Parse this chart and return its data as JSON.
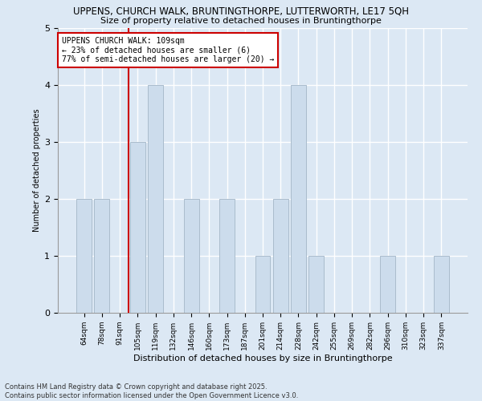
{
  "title1": "UPPENS, CHURCH WALK, BRUNTINGTHORPE, LUTTERWORTH, LE17 5QH",
  "title2": "Size of property relative to detached houses in Bruntingthorpe",
  "xlabel": "Distribution of detached houses by size in Bruntingthorpe",
  "ylabel": "Number of detached properties",
  "categories": [
    "64sqm",
    "78sqm",
    "91sqm",
    "105sqm",
    "119sqm",
    "132sqm",
    "146sqm",
    "160sqm",
    "173sqm",
    "187sqm",
    "201sqm",
    "214sqm",
    "228sqm",
    "242sqm",
    "255sqm",
    "269sqm",
    "282sqm",
    "296sqm",
    "310sqm",
    "323sqm",
    "337sqm"
  ],
  "values": [
    2,
    2,
    0,
    3,
    4,
    0,
    2,
    0,
    2,
    0,
    1,
    2,
    4,
    1,
    0,
    0,
    0,
    1,
    0,
    0,
    1
  ],
  "bar_color": "#ccdcec",
  "bar_edgecolor": "#aabccc",
  "ylim": [
    0,
    5
  ],
  "yticks": [
    0,
    1,
    2,
    3,
    4,
    5
  ],
  "annotation_text": "UPPENS CHURCH WALK: 109sqm\n← 23% of detached houses are smaller (6)\n77% of semi-detached houses are larger (20) →",
  "annotation_box_color": "#ffffff",
  "annotation_box_edge": "#cc0000",
  "vline_color": "#cc0000",
  "vline_x_index": 3,
  "footer": "Contains HM Land Registry data © Crown copyright and database right 2025.\nContains public sector information licensed under the Open Government Licence v3.0.",
  "background_color": "#dce8f4",
  "plot_background": "#dce8f4",
  "grid_color": "#ffffff"
}
